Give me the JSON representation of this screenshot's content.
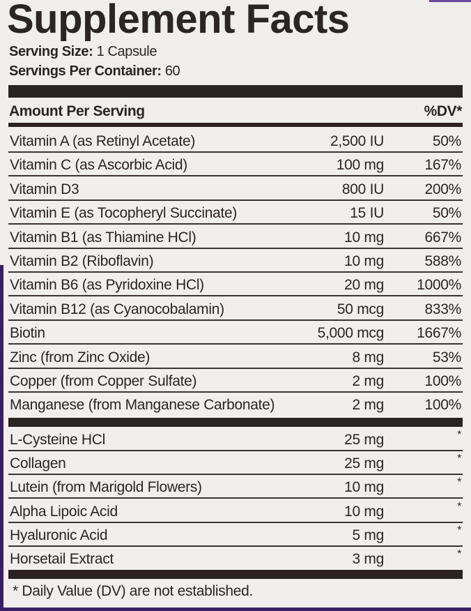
{
  "title": "Supplement Facts",
  "serving_size": {
    "label": "Serving Size:",
    "value": "1 Capsule"
  },
  "servings_per_container": {
    "label": "Servings Per Container:",
    "value": "60"
  },
  "header": {
    "amount": "Amount Per Serving",
    "dv": "%DV*"
  },
  "vitamins": [
    {
      "name": "Vitamin A (as Retinyl Acetate)",
      "amount": "2,500 IU",
      "dv": "50%"
    },
    {
      "name": "Vitamin C (as Ascorbic Acid)",
      "amount": "100 mg",
      "dv": "167%"
    },
    {
      "name": "Vitamin D3",
      "amount": "800 IU",
      "dv": "200%"
    },
    {
      "name": "Vitamin E (as Tocopheryl Succinate)",
      "amount": "15 IU",
      "dv": "50%"
    },
    {
      "name": "Vitamin B1 (as Thiamine HCl)",
      "amount": "10 mg",
      "dv": "667%"
    },
    {
      "name": "Vitamin B2 (Riboflavin)",
      "amount": "10 mg",
      "dv": "588%"
    },
    {
      "name": "Vitamin B6 (as Pyridoxine HCl)",
      "amount": "20 mg",
      "dv": "1000%"
    },
    {
      "name": "Vitamin B12 (as Cyanocobalamin)",
      "amount": "50 mcg",
      "dv": "833%"
    },
    {
      "name": "Biotin",
      "amount": "5,000 mcg",
      "dv": "1667%"
    },
    {
      "name": "Zinc (from Zinc Oxide)",
      "amount": "8 mg",
      "dv": "53%"
    },
    {
      "name": "Copper (from Copper Sulfate)",
      "amount": "2 mg",
      "dv": "100%"
    },
    {
      "name": "Manganese (from Manganese Carbonate)",
      "amount": "2 mg",
      "dv": "100%"
    }
  ],
  "others": [
    {
      "name": "L-Cysteine HCl",
      "amount": "25 mg",
      "dv": "*"
    },
    {
      "name": "Collagen",
      "amount": "25 mg",
      "dv": "*"
    },
    {
      "name": "Lutein (from Marigold Flowers)",
      "amount": "10 mg",
      "dv": "*"
    },
    {
      "name": "Alpha Lipoic Acid",
      "amount": "10 mg",
      "dv": "*"
    },
    {
      "name": "Hyaluronic Acid",
      "amount": "5 mg",
      "dv": "*"
    },
    {
      "name": "Horsetail Extract",
      "amount": "3 mg",
      "dv": "*"
    }
  ],
  "footnote": "* Daily Value (DV) are not established.",
  "colors": {
    "ink": "#2a2523",
    "background": "#f1efed",
    "border": "#3b1f66"
  }
}
